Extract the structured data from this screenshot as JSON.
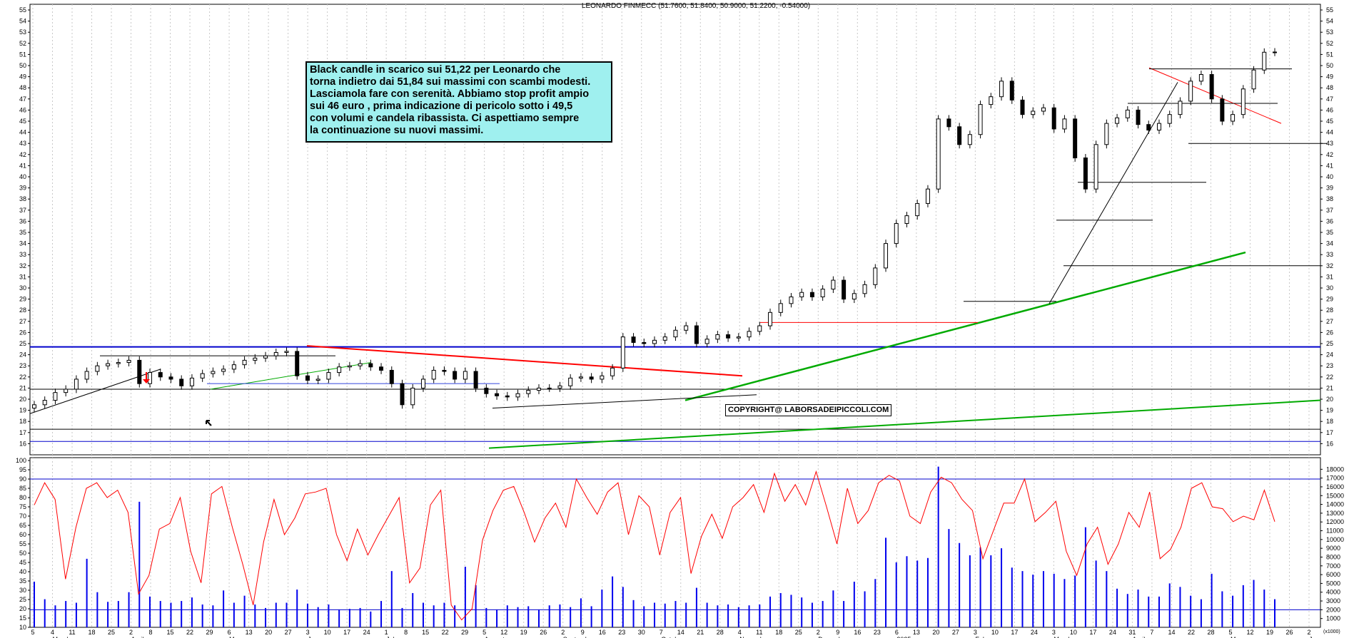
{
  "chart_data": {
    "type": "candlestick",
    "title": "LEONARDO FINMECC (51.7600, 51.8400, 50.9000, 51.2200, -0.54000)",
    "price_axis": {
      "ylim": [
        15,
        55
      ],
      "ticks": [
        16,
        17,
        18,
        19,
        20,
        21,
        22,
        23,
        24,
        25,
        26,
        27,
        28,
        29,
        30,
        31,
        32,
        33,
        34,
        35,
        36,
        37,
        38,
        39,
        40,
        41,
        42,
        43,
        44,
        45,
        46,
        47,
        48,
        49,
        50,
        51,
        52,
        53,
        54,
        55
      ]
    },
    "oscillator_axis": {
      "ylim": [
        10,
        100
      ],
      "ticks": [
        10,
        15,
        20,
        25,
        30,
        35,
        40,
        45,
        50,
        55,
        60,
        65,
        70,
        75,
        80,
        85,
        90,
        95,
        100
      ]
    },
    "volume_axis": {
      "ylim": [
        0,
        19000
      ],
      "ticks": [
        1000,
        2000,
        3000,
        4000,
        5000,
        6000,
        7000,
        8000,
        9000,
        10000,
        11000,
        12000,
        13000,
        14000,
        15000,
        16000,
        17000,
        18000
      ],
      "unit_label": "(x1000)"
    },
    "x_days": [
      "5",
      "4",
      "11",
      "18",
      "25",
      "2",
      "8",
      "15",
      "22",
      "29",
      "6",
      "13",
      "20",
      "27",
      "3",
      "10",
      "17",
      "24",
      "1",
      "8",
      "15",
      "22",
      "29",
      "5",
      "12",
      "19",
      "26",
      "2",
      "9",
      "16",
      "23",
      "30",
      "7",
      "14",
      "21",
      "28",
      "4",
      "11",
      "18",
      "25",
      "2",
      "9",
      "16",
      "23",
      "6",
      "13",
      "20",
      "27",
      "3",
      "10",
      "17",
      "24",
      "3",
      "10",
      "17",
      "24",
      "31",
      "7",
      "14",
      "22",
      "28",
      "5",
      "12",
      "19",
      "26",
      "2"
    ],
    "x_months": [
      "March",
      "April",
      "May",
      "June",
      "July",
      "August",
      "September",
      "October",
      "November",
      "December",
      "2025",
      "February",
      "March",
      "April",
      "May",
      "June"
    ],
    "price_series": {
      "name": "LEONARDO FINMECC",
      "close": [
        19.5,
        19.9,
        20.6,
        20.9,
        21.8,
        22.5,
        23.0,
        23.2,
        23.3,
        23.5,
        21.4,
        22.4,
        22.0,
        21.8,
        21.2,
        21.9,
        22.3,
        22.5,
        22.7,
        23.1,
        23.5,
        23.7,
        23.9,
        24.2,
        24.3,
        22.1,
        21.7,
        21.8,
        22.4,
        22.9,
        23.0,
        23.2,
        22.9,
        22.6,
        21.4,
        19.5,
        21.0,
        21.8,
        22.6,
        22.5,
        21.8,
        22.5,
        21.0,
        20.5,
        20.3,
        20.2,
        20.5,
        20.8,
        21.0,
        21.0,
        21.2,
        21.9,
        22.0,
        21.8,
        22.1,
        22.8,
        25.6,
        25.1,
        25.0,
        25.3,
        25.6,
        26.2,
        26.6,
        25.0,
        25.4,
        25.8,
        25.5,
        25.6,
        26.1,
        26.6,
        27.8,
        28.6,
        29.2,
        29.6,
        29.2,
        29.9,
        30.7,
        29.0,
        29.5,
        30.3,
        31.8,
        34.0,
        35.8,
        36.5,
        37.6,
        38.9,
        45.2,
        44.5,
        42.9,
        43.8,
        46.5,
        47.2,
        48.6,
        46.9,
        45.6,
        45.9,
        46.2,
        44.3,
        45.2,
        41.7,
        38.9,
        42.9,
        44.8,
        45.3,
        46.0,
        44.7,
        44.2,
        44.8,
        45.6,
        46.8,
        48.6,
        49.2,
        47.0,
        45.0,
        45.6,
        47.9,
        49.6,
        51.2,
        51.22
      ]
    },
    "volume_series": {
      "name": "Volume",
      "values": [
        5200,
        3200,
        2500,
        3000,
        2800,
        7800,
        4000,
        2900,
        3000,
        4000,
        14300,
        3500,
        3000,
        2800,
        3000,
        3400,
        2600,
        2500,
        4200,
        2800,
        3600,
        2600,
        2200,
        2800,
        2800,
        4300,
        2700,
        2300,
        2600,
        2000,
        2100,
        2200,
        1800,
        3000,
        6400,
        2200,
        3900,
        2800,
        2500,
        2800,
        2500,
        6900,
        4800,
        2200,
        2000,
        2500,
        2300,
        2400,
        2000,
        2500,
        2600,
        2300,
        3300,
        2400,
        4300,
        5800,
        4600,
        3100,
        2400,
        2800,
        2700,
        3000,
        2800,
        4500,
        2800,
        2500,
        2600,
        2300,
        2500,
        2600,
        3500,
        3900,
        3700,
        3400,
        2800,
        3000,
        4200,
        3000,
        5200,
        4100,
        5500,
        10200,
        7400,
        8100,
        7600,
        7900,
        18300,
        11200,
        9600,
        8200,
        9100,
        8200,
        9000,
        6800,
        6400,
        6000,
        6400,
        6100,
        5500,
        5900,
        11400,
        7600,
        6400,
        4400,
        3800,
        4300,
        3500,
        3500,
        5000,
        4600,
        3600,
        3200,
        6100,
        4100,
        3600,
        4800,
        5400,
        4300,
        3200
      ]
    },
    "oscillator_series": {
      "name": "Oscillator",
      "values": [
        76,
        88,
        79,
        36,
        64,
        85,
        88,
        80,
        84,
        72,
        28,
        38,
        63,
        66,
        80,
        51,
        34,
        82,
        86,
        64,
        44,
        22,
        56,
        79,
        60,
        69,
        82,
        83,
        85,
        60,
        46,
        63,
        49,
        60,
        70,
        80,
        34,
        42,
        76,
        84,
        22,
        14,
        20,
        57,
        73,
        84,
        86,
        72,
        56,
        69,
        77,
        64,
        90,
        80,
        71,
        83,
        88,
        60,
        81,
        75,
        49,
        72,
        80,
        39,
        59,
        71,
        58,
        75,
        80,
        87,
        72,
        93,
        78,
        87,
        76,
        94,
        75,
        55,
        85,
        66,
        73,
        88,
        92,
        89,
        70,
        66,
        83,
        91,
        88,
        79,
        73,
        47,
        62,
        77,
        77,
        90,
        67,
        72,
        78,
        51,
        38,
        55,
        64,
        44,
        55,
        72,
        64,
        83,
        47,
        52,
        64,
        85,
        88,
        75,
        74,
        67,
        70,
        68,
        84,
        67
      ]
    },
    "annotations": {
      "commentary": "Black candle in scarico sui 51,22 per Leonardo che\ntorna indietro dai 51,84 sui massimi con scambi modesti.\nLasciamola fare con serenità. Abbiamo stop profit ampio\nsui 46 euro , prima indicazione di pericolo sotto i 49,5\ncon volumi e candela ribassista. Ci aspettiamo sempre\nla continuazione su nuovi massimi.",
      "copyright": "COPYRIGHT@ LABORSADEIPICCOLI.COM"
    },
    "reference_levels": [
      16.2,
      17.3,
      20.9,
      24.7,
      32.0,
      43.0
    ],
    "colors": {
      "candle": "#000000",
      "volume": "#0000ee",
      "oscillator": "#ff0000",
      "support_line": "#00aa00",
      "resistance_line": "#ff0000",
      "level_line": "#0000cc",
      "grid": "#c8c8c8",
      "annotation_bg": "#9ff0ef"
    },
    "grid": true,
    "legend": "none"
  }
}
